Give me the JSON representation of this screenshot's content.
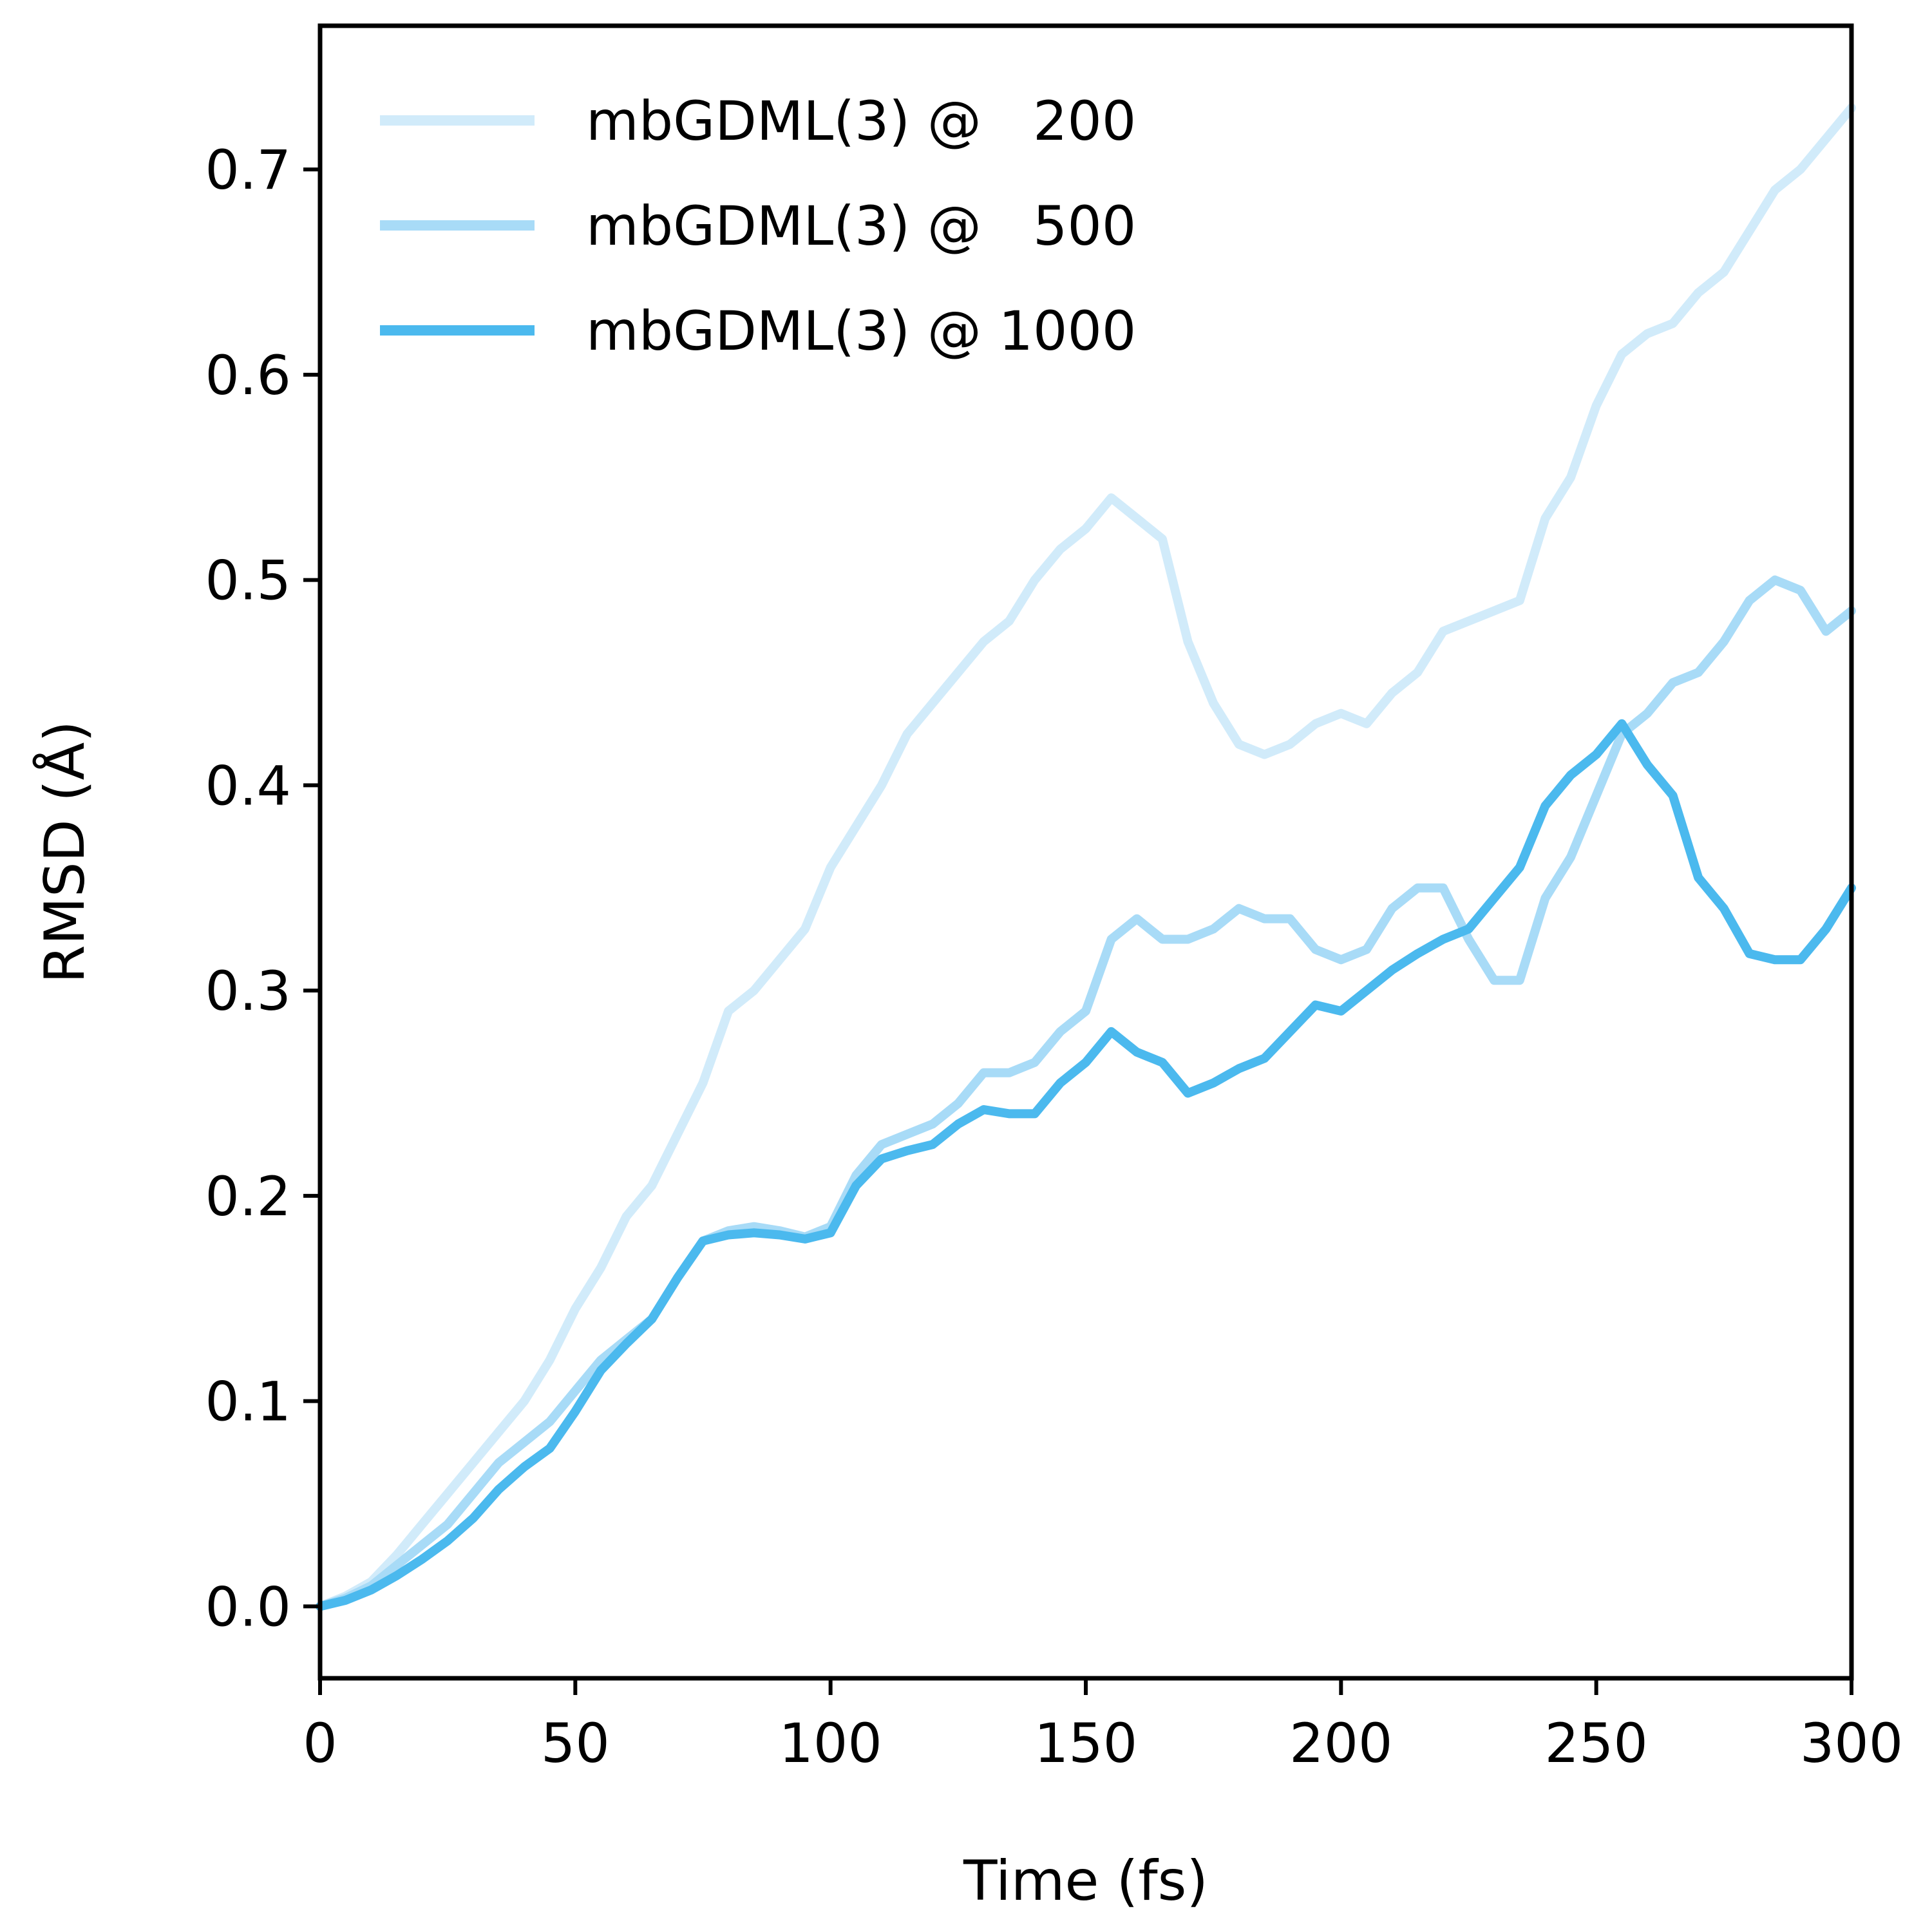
{
  "chart_data": {
    "type": "line",
    "xlabel": "Time (fs)",
    "ylabel": "RMSD (Å)",
    "xlim": [
      0,
      300
    ],
    "ylim": [
      -0.035,
      0.77
    ],
    "xticks": [
      0,
      50,
      100,
      150,
      200,
      250,
      300
    ],
    "yticks": [
      0.0,
      0.1,
      0.2,
      0.3,
      0.4,
      0.5,
      0.6,
      0.7
    ],
    "x_tick_labels": [
      "0",
      "50",
      "100",
      "150",
      "200",
      "250",
      "300"
    ],
    "y_tick_labels": [
      "0.0",
      "0.1",
      "0.2",
      "0.3",
      "0.4",
      "0.5",
      "0.6",
      "0.7"
    ],
    "grid": false,
    "legend_position": "top-left",
    "series": [
      {
        "name": "mbGDML(3) @   200",
        "color": "#d1ebfa",
        "x": [
          0,
          5,
          10,
          15,
          20,
          25,
          30,
          35,
          40,
          45,
          50,
          55,
          60,
          65,
          70,
          75,
          80,
          85,
          90,
          95,
          100,
          105,
          110,
          115,
          120,
          125,
          130,
          135,
          140,
          145,
          150,
          155,
          160,
          165,
          170,
          175,
          180,
          185,
          190,
          195,
          200,
          205,
          210,
          215,
          220,
          225,
          230,
          235,
          240,
          245,
          250,
          255,
          260,
          265,
          270,
          275,
          280,
          285,
          290,
          295,
          300
        ],
        "y": [
          0.0,
          0.005,
          0.012,
          0.025,
          0.04,
          0.055,
          0.07,
          0.085,
          0.1,
          0.12,
          0.145,
          0.165,
          0.19,
          0.205,
          0.23,
          0.255,
          0.29,
          0.3,
          0.315,
          0.33,
          0.36,
          0.38,
          0.4,
          0.425,
          0.44,
          0.455,
          0.47,
          0.48,
          0.5,
          0.515,
          0.525,
          0.54,
          0.53,
          0.52,
          0.47,
          0.44,
          0.42,
          0.415,
          0.42,
          0.43,
          0.435,
          0.43,
          0.445,
          0.455,
          0.475,
          0.48,
          0.485,
          0.49,
          0.53,
          0.55,
          0.585,
          0.61,
          0.62,
          0.625,
          0.64,
          0.65,
          0.67,
          0.69,
          0.7,
          0.715,
          0.73
        ]
      },
      {
        "name": "mbGDML(3) @   500",
        "color": "#a8dbf7",
        "x": [
          0,
          5,
          10,
          15,
          20,
          25,
          30,
          35,
          40,
          45,
          50,
          55,
          60,
          65,
          70,
          75,
          80,
          85,
          90,
          95,
          100,
          105,
          110,
          115,
          120,
          125,
          130,
          135,
          140,
          145,
          150,
          155,
          160,
          165,
          170,
          175,
          180,
          185,
          190,
          195,
          200,
          205,
          210,
          215,
          220,
          225,
          230,
          235,
          240,
          245,
          250,
          255,
          260,
          265,
          270,
          275,
          280,
          285,
          290,
          295,
          300
        ],
        "y": [
          0.0,
          0.004,
          0.01,
          0.02,
          0.03,
          0.04,
          0.055,
          0.07,
          0.08,
          0.09,
          0.105,
          0.12,
          0.13,
          0.14,
          0.16,
          0.178,
          0.183,
          0.185,
          0.183,
          0.18,
          0.185,
          0.21,
          0.225,
          0.23,
          0.235,
          0.245,
          0.26,
          0.26,
          0.265,
          0.28,
          0.29,
          0.325,
          0.335,
          0.325,
          0.325,
          0.33,
          0.34,
          0.335,
          0.335,
          0.32,
          0.315,
          0.32,
          0.34,
          0.35,
          0.35,
          0.325,
          0.305,
          0.305,
          0.345,
          0.365,
          0.395,
          0.425,
          0.435,
          0.45,
          0.455,
          0.47,
          0.49,
          0.5,
          0.495,
          0.475,
          0.485
        ]
      },
      {
        "name": "mbGDML(3) @ 1000",
        "color": "#4bb9ee",
        "x": [
          0,
          5,
          10,
          15,
          20,
          25,
          30,
          35,
          40,
          45,
          50,
          55,
          60,
          65,
          70,
          75,
          80,
          85,
          90,
          95,
          100,
          105,
          110,
          115,
          120,
          125,
          130,
          135,
          140,
          145,
          150,
          155,
          160,
          165,
          170,
          175,
          180,
          185,
          190,
          195,
          200,
          205,
          210,
          215,
          220,
          225,
          230,
          235,
          240,
          245,
          250,
          255,
          260,
          265,
          270,
          275,
          280,
          285,
          290,
          295,
          300
        ],
        "y": [
          0.0,
          0.003,
          0.008,
          0.015,
          0.023,
          0.032,
          0.043,
          0.057,
          0.068,
          0.077,
          0.095,
          0.115,
          0.128,
          0.14,
          0.16,
          0.178,
          0.181,
          0.182,
          0.181,
          0.179,
          0.182,
          0.205,
          0.218,
          0.222,
          0.225,
          0.235,
          0.242,
          0.24,
          0.24,
          0.255,
          0.265,
          0.28,
          0.27,
          0.265,
          0.25,
          0.255,
          0.262,
          0.267,
          0.28,
          0.293,
          0.29,
          0.3,
          0.31,
          0.318,
          0.325,
          0.33,
          0.345,
          0.36,
          0.39,
          0.405,
          0.415,
          0.43,
          0.41,
          0.395,
          0.355,
          0.34,
          0.318,
          0.315,
          0.315,
          0.33,
          0.35
        ]
      }
    ]
  }
}
